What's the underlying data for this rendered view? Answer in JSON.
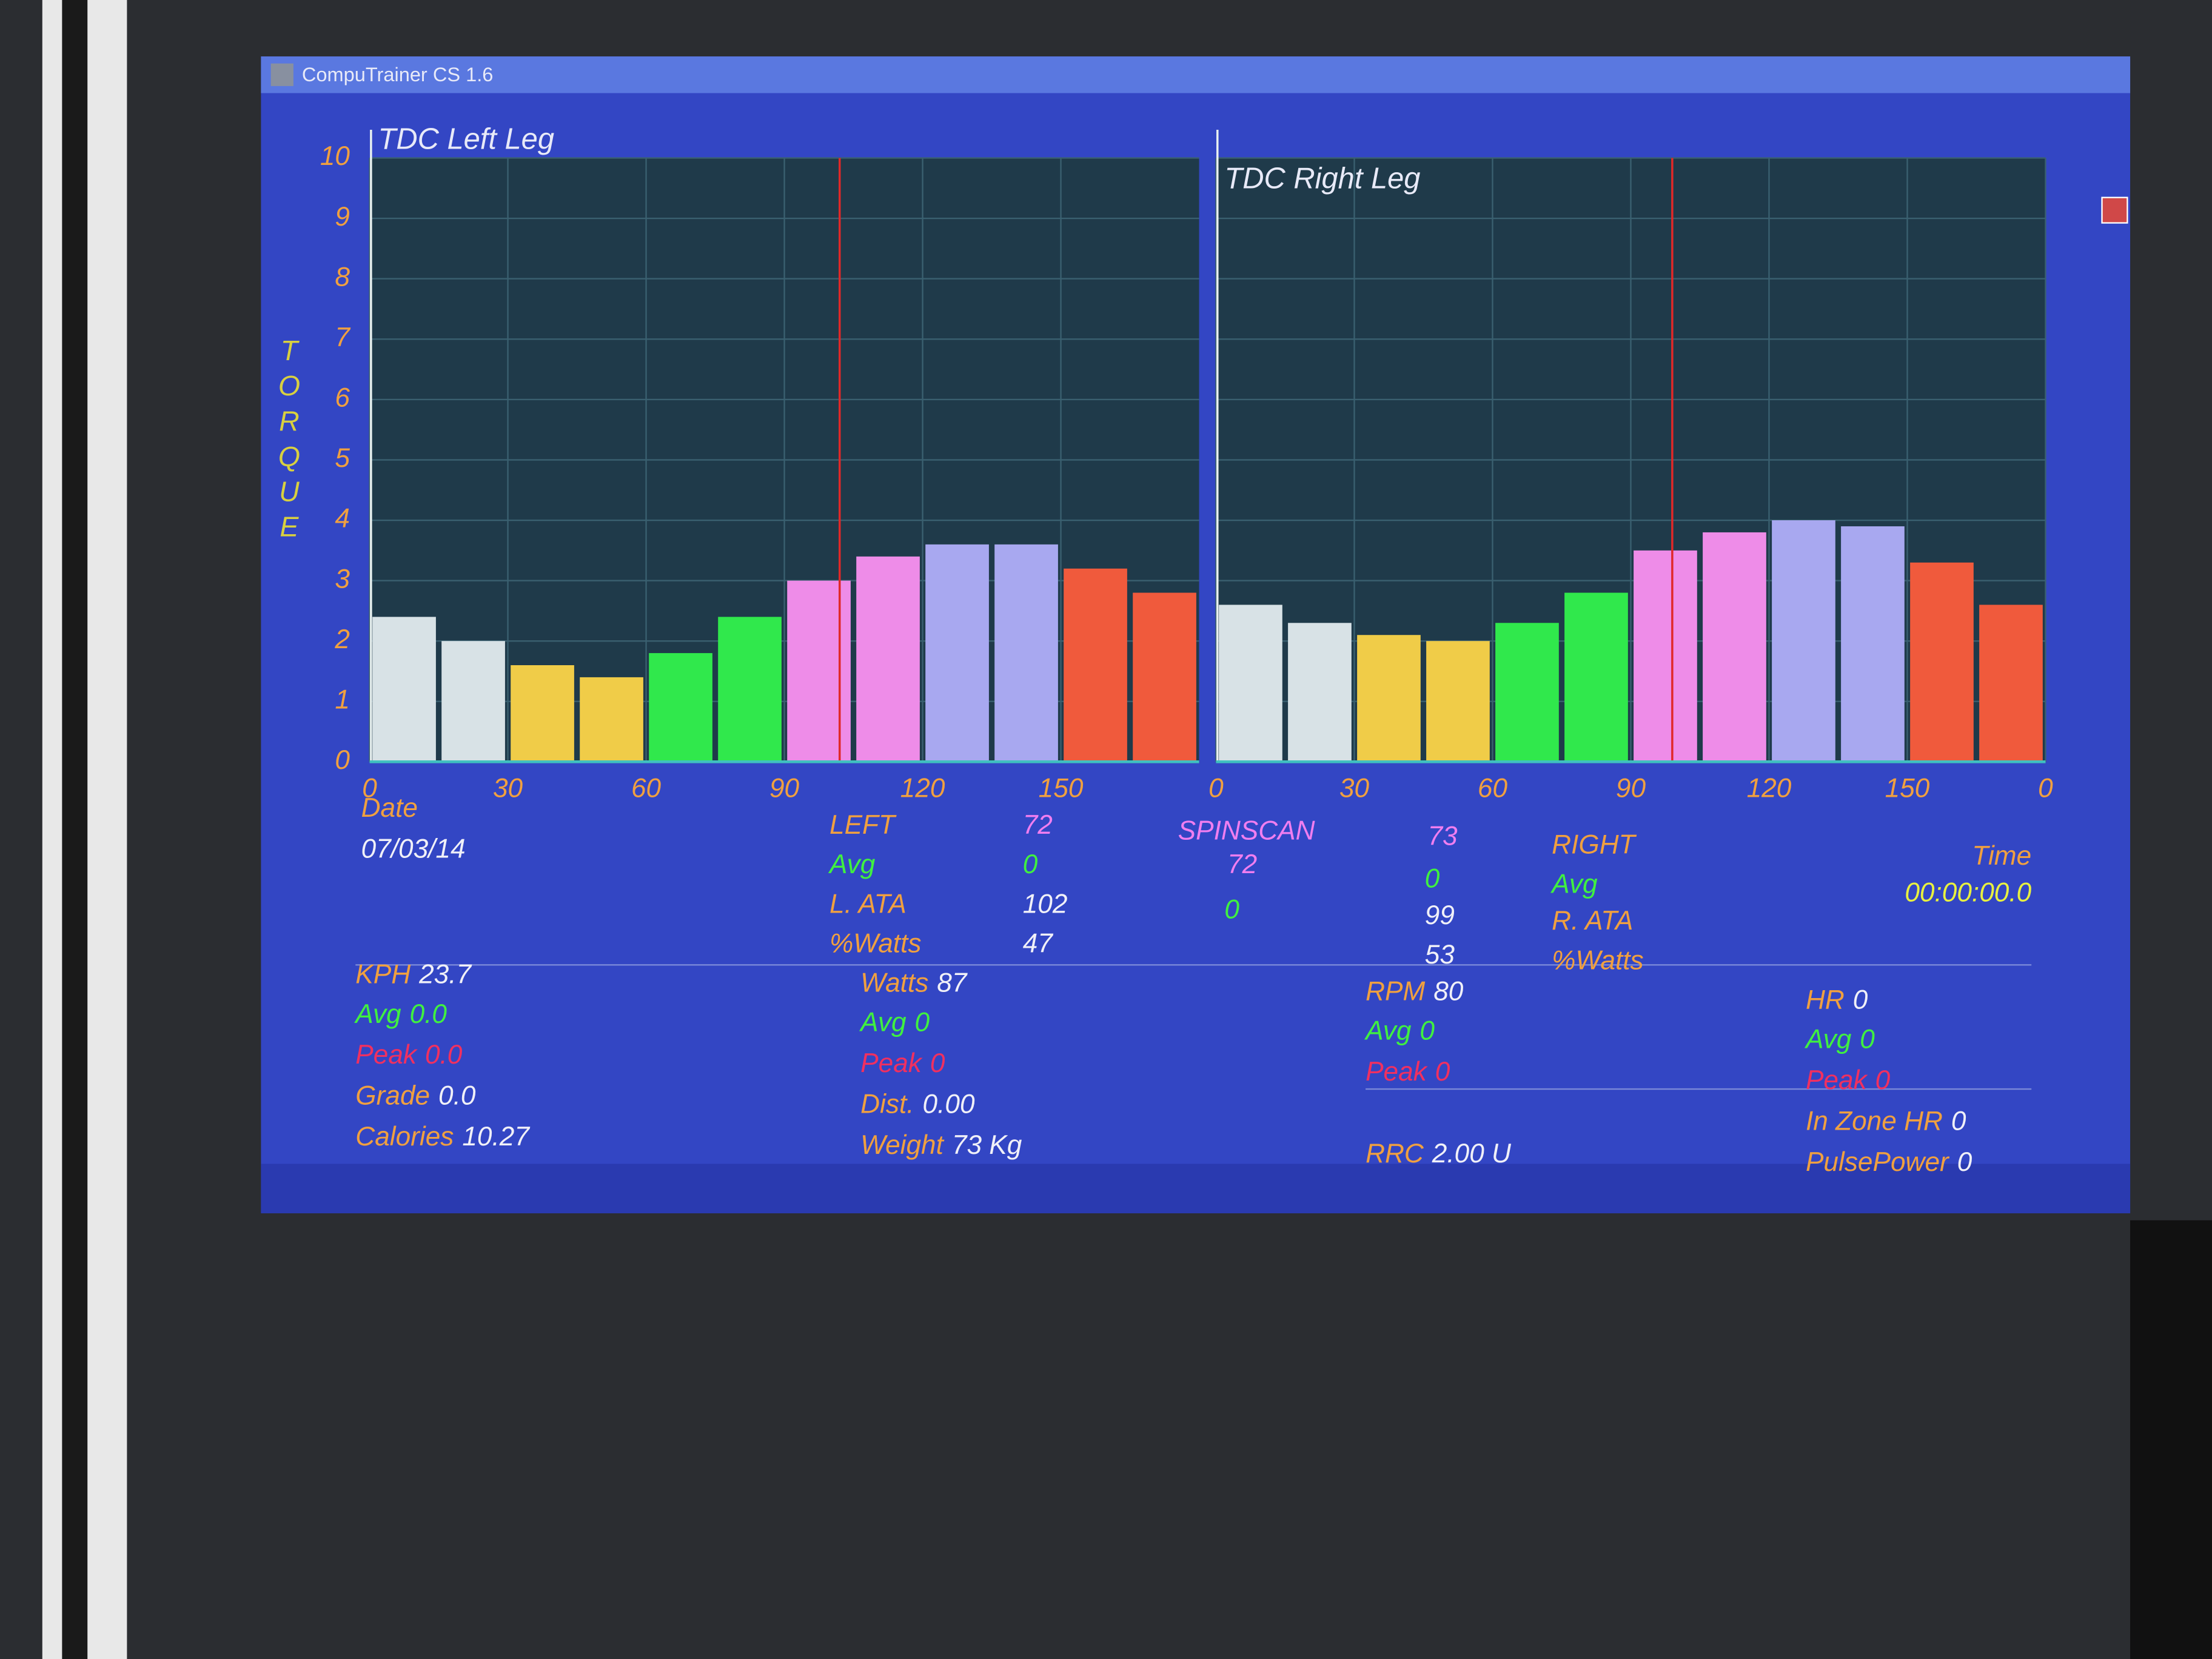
{
  "window": {
    "title": "CompuTrainer CS 1.6"
  },
  "chart_data": [
    {
      "type": "bar",
      "title": "TDC Left Leg",
      "ylabel": "TORQUE",
      "values": [
        2.4,
        2.0,
        1.6,
        1.4,
        1.8,
        2.4,
        3.0,
        3.4,
        3.6,
        3.6,
        3.2,
        2.8
      ],
      "colors": [
        "#d8e2e6",
        "#d8e2e6",
        "#f0cc48",
        "#f0cc48",
        "#30e84c",
        "#30e84c",
        "#ee8ce8",
        "#ee8ce8",
        "#a8a8f0",
        "#a8a8f0",
        "#f05a3c",
        "#f05a3c"
      ],
      "xlim": [
        0,
        180
      ],
      "xticks": [
        0,
        30,
        60,
        90,
        120,
        150
      ],
      "ylim": [
        0,
        10
      ],
      "yticks": [
        0,
        1,
        2,
        3,
        4,
        5,
        6,
        7,
        8,
        9,
        10
      ],
      "grid": true
    },
    {
      "type": "bar",
      "title": "TDC Right Leg",
      "values": [
        2.6,
        2.3,
        2.1,
        2.0,
        2.3,
        2.8,
        3.5,
        3.8,
        4.0,
        3.9,
        3.3,
        2.6
      ],
      "colors": [
        "#d8e2e6",
        "#d8e2e6",
        "#f0cc48",
        "#f0cc48",
        "#30e84c",
        "#30e84c",
        "#ee8ce8",
        "#ee8ce8",
        "#a8a8f0",
        "#a8a8f0",
        "#f05a3c",
        "#f05a3c"
      ],
      "xlim": [
        0,
        180
      ],
      "xticks": [
        0,
        30,
        60,
        90,
        120,
        150,
        {
          "value": 180,
          "label": "0"
        }
      ],
      "ylim": [
        0,
        10
      ],
      "grid": true
    }
  ],
  "spinscan": {
    "date_label": "Date",
    "date": "07/03/14",
    "left": {
      "label": "LEFT",
      "value": 72,
      "avg_label": "Avg",
      "avg": 0,
      "ata_label": "L. ATA",
      "ata": 102,
      "watts_label": "%Watts",
      "watts": 47
    },
    "center": {
      "label": "SPINSCAN",
      "value": 72,
      "avg": 0
    },
    "right": {
      "label": "RIGHT",
      "value": 73,
      "avg_label": "Avg",
      "avg": 0,
      "ata_label": "R. ATA",
      "ata": 99,
      "watts_label": "%Watts",
      "watts": 53
    },
    "time": {
      "label": "Time",
      "value": "00:00:00.0"
    }
  },
  "metrics": [
    [
      {
        "label": "KPH",
        "value": 23.7
      },
      {
        "label": "Avg",
        "value": "0.0"
      },
      {
        "label": "Peak",
        "value": "0.0"
      },
      {
        "label": "Grade",
        "value": "0.0"
      },
      {
        "label": "Calories",
        "value": 10.27
      }
    ],
    [
      {
        "label": "Watts",
        "value": 87
      },
      {
        "label": "Avg",
        "value": 0
      },
      {
        "label": "Peak",
        "value": 0
      },
      {
        "label": "Dist.",
        "value": "0.00"
      },
      {
        "label": "Weight",
        "value": "73 Kg"
      }
    ],
    [
      {
        "label": "RPM",
        "value": 80
      },
      {
        "label": "Avg",
        "value": 0
      },
      {
        "label": "Peak",
        "value": 0
      },
      {
        "label": "RRC",
        "value": "2.00 U"
      }
    ],
    [
      {
        "label": "HR",
        "value": 0
      },
      {
        "label": "Avg",
        "value": 0
      },
      {
        "label": "Peak",
        "value": 0
      },
      {
        "label": "In Zone HR",
        "value": 0
      },
      {
        "label": "PulsePower",
        "value": 0
      }
    ]
  ]
}
